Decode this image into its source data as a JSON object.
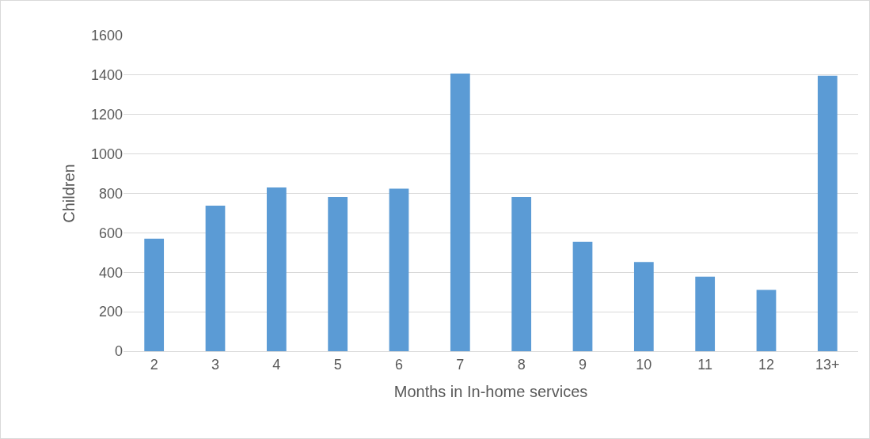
{
  "chart_data": {
    "type": "bar",
    "xlabel": "Months in In-home services",
    "ylabel": "Children",
    "categories": [
      "2",
      "3",
      "4",
      "5",
      "6",
      "7",
      "8",
      "9",
      "10",
      "11",
      "12",
      "13+"
    ],
    "values": [
      570,
      738,
      830,
      782,
      824,
      1408,
      782,
      554,
      452,
      378,
      311,
      1396
    ],
    "color": "#5b9bd5",
    "ylim": [
      0,
      1600
    ],
    "yticks": [
      0,
      200,
      400,
      600,
      800,
      1000,
      1200,
      1400,
      1600
    ],
    "grid": "y"
  }
}
